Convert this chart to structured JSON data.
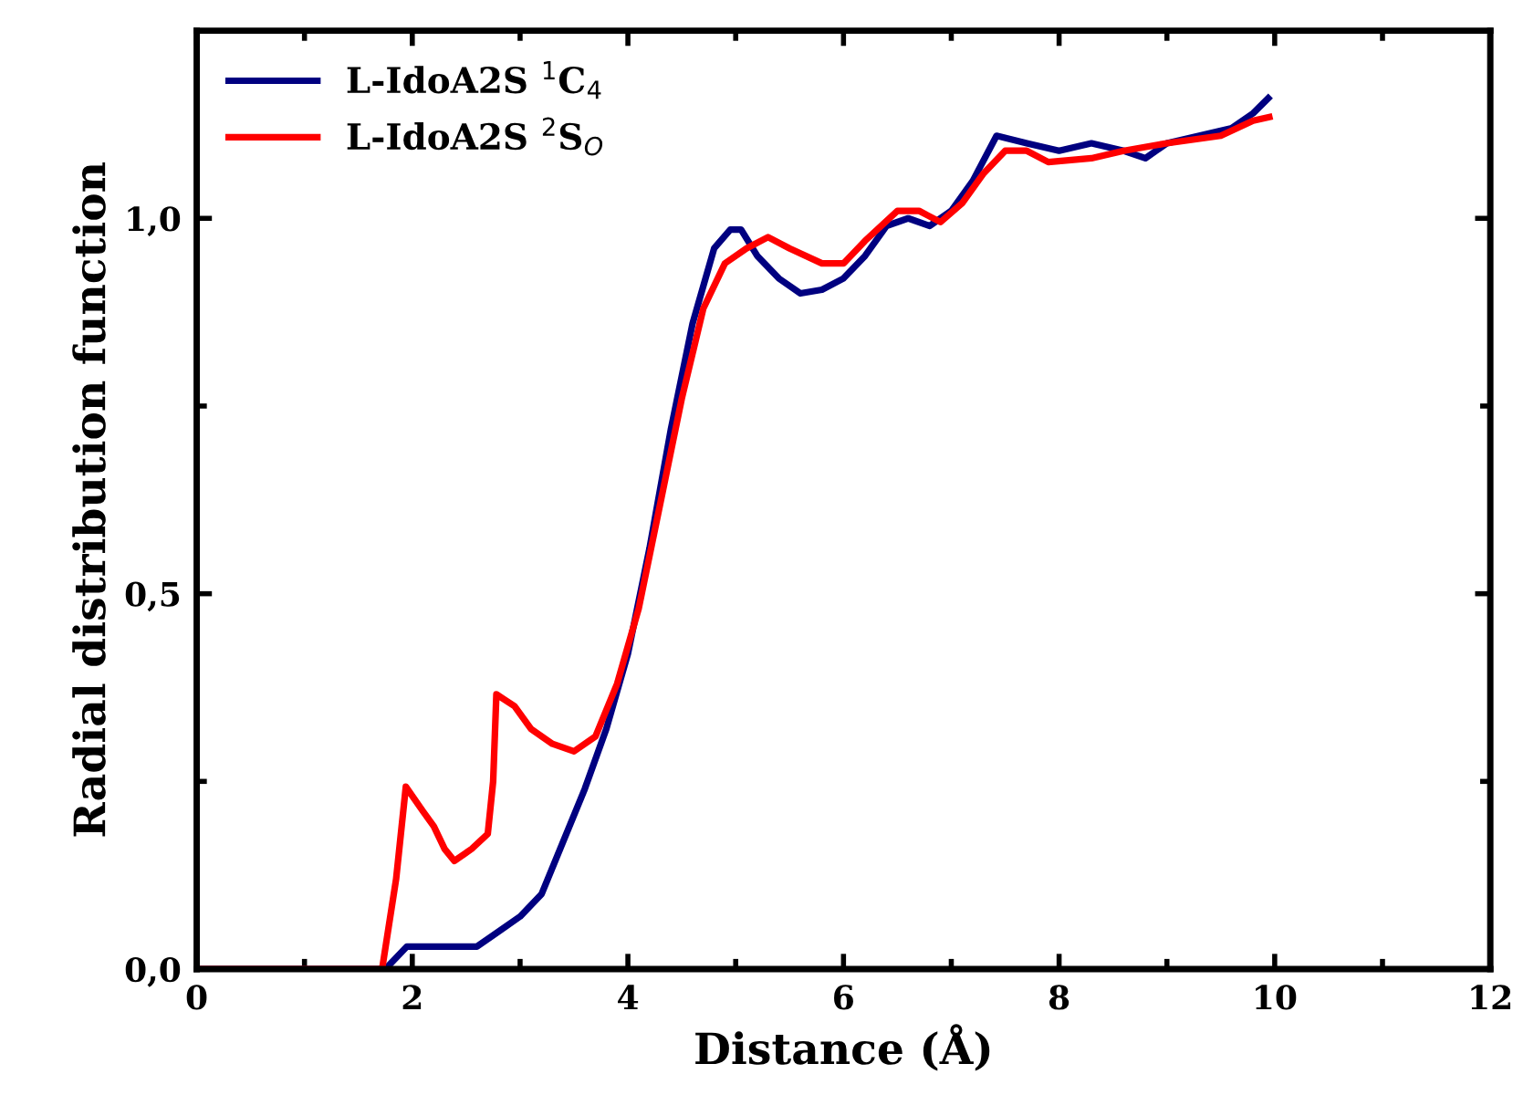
{
  "chart_data": {
    "type": "line",
    "xlabel": "Distance (Å)",
    "ylabel": "Radial distribution function",
    "xlim": [
      0,
      12
    ],
    "ylim": [
      0,
      1.25
    ],
    "xticks": [
      0,
      {
        "value": 1,
        "label": null
      },
      2,
      {
        "value": 3,
        "label": null
      },
      4,
      {
        "value": 5,
        "label": null
      },
      6,
      {
        "value": 7,
        "label": null
      },
      8,
      {
        "value": 9,
        "label": null
      },
      10,
      {
        "value": 11,
        "label": null
      },
      12
    ],
    "yticks": [
      {
        "value": 0,
        "label": "0,0"
      },
      {
        "value": 0.25,
        "label": null
      },
      {
        "value": 0.5,
        "label": "0,5"
      },
      {
        "value": 0.75,
        "label": null
      },
      {
        "value": 1.0,
        "label": "1,0"
      }
    ],
    "legend": "top left",
    "grid": false,
    "marker": "none",
    "line_style": "solid",
    "series": [
      {
        "name": "L-IdoA2S $^{1}$C$_{4}$",
        "color": "#000080",
        "x": [
          0,
          1.75,
          1.95,
          2.5,
          2.6,
          2.75,
          3.0,
          3.2,
          3.4,
          3.6,
          3.8,
          4.0,
          4.2,
          4.4,
          4.6,
          4.8,
          4.95,
          5.05,
          5.2,
          5.4,
          5.6,
          5.8,
          6.0,
          6.2,
          6.4,
          6.6,
          6.8,
          7.0,
          7.2,
          7.42,
          7.7,
          8.0,
          8.3,
          8.6,
          8.8,
          9.0,
          9.3,
          9.6,
          9.8,
          9.94
        ],
        "values": [
          0,
          0,
          0.03,
          0.03,
          0.03,
          0.045,
          0.07,
          0.1,
          0.17,
          0.24,
          0.32,
          0.42,
          0.56,
          0.72,
          0.86,
          0.96,
          0.985,
          0.985,
          0.95,
          0.92,
          0.9,
          0.905,
          0.92,
          0.95,
          0.99,
          1.0,
          0.99,
          1.01,
          1.05,
          1.11,
          1.1,
          1.09,
          1.1,
          1.09,
          1.08,
          1.1,
          1.11,
          1.12,
          1.14,
          1.16
        ]
      },
      {
        "name": "L-IdoA2S $^{2}$S$_{O}$",
        "color": "#ff0000",
        "x": [
          0,
          1.72,
          1.85,
          1.94,
          2.1,
          2.2,
          2.3,
          2.39,
          2.55,
          2.7,
          2.75,
          2.78,
          2.95,
          3.1,
          3.3,
          3.5,
          3.7,
          3.9,
          4.1,
          4.3,
          4.5,
          4.7,
          4.9,
          5.1,
          5.3,
          5.5,
          5.8,
          6.0,
          6.2,
          6.5,
          6.7,
          6.9,
          7.1,
          7.3,
          7.5,
          7.7,
          7.9,
          8.3,
          8.6,
          9.0,
          9.5,
          9.8,
          9.95
        ],
        "values": [
          0,
          0,
          0.12,
          0.243,
          0.21,
          0.19,
          0.16,
          0.144,
          0.16,
          0.18,
          0.25,
          0.366,
          0.35,
          0.32,
          0.3,
          0.29,
          0.31,
          0.38,
          0.48,
          0.62,
          0.76,
          0.88,
          0.94,
          0.96,
          0.975,
          0.96,
          0.94,
          0.94,
          0.97,
          1.01,
          1.01,
          0.995,
          1.02,
          1.06,
          1.09,
          1.09,
          1.075,
          1.08,
          1.09,
          1.1,
          1.11,
          1.13,
          1.135
        ]
      }
    ]
  }
}
